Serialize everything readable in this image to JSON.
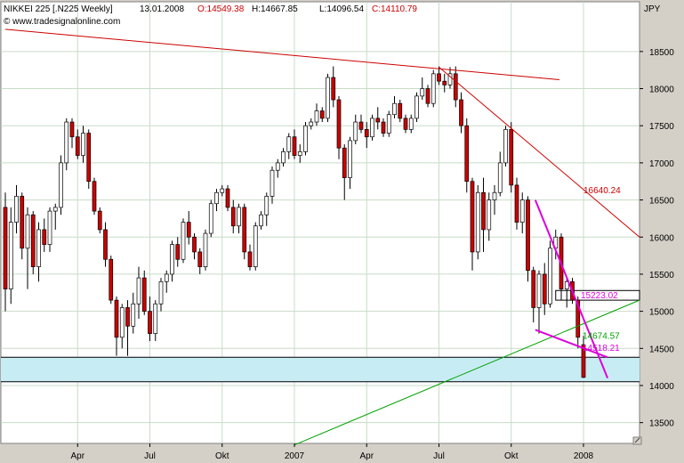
{
  "header": {
    "symbol": "NIKKEI 225 [.N225  Weekly]",
    "date": "13.01.2008",
    "open": "O:14549.38",
    "high": "H:14667.85",
    "low": "L:14096.54",
    "close": "C:14110.79",
    "watermark": "© www.tradesignalonline.com",
    "currency": "JPY"
  },
  "chart_data": {
    "type": "candlestick",
    "title": "NIKKEI 225 [.N225  Weekly]",
    "x_ticks": [
      "Apr",
      "Jul",
      "Okt",
      "2007",
      "Apr",
      "Jul",
      "Okt",
      "2008"
    ],
    "y_ticks": [
      13500,
      14000,
      14500,
      15000,
      15500,
      16000,
      16500,
      17000,
      17500,
      18000,
      18500
    ],
    "ylim": [
      13220,
      19170
    ],
    "grid": true,
    "candles": [
      [
        16400,
        16600,
        15000,
        15300
      ],
      [
        15300,
        16400,
        15100,
        16200
      ],
      [
        16200,
        16700,
        16050,
        16550
      ],
      [
        16550,
        16600,
        15700,
        15850
      ],
      [
        15850,
        16400,
        15300,
        16300
      ],
      [
        16300,
        16350,
        15500,
        15600
      ],
      [
        15600,
        16200,
        15400,
        16100
      ],
      [
        16100,
        16250,
        15800,
        15900
      ],
      [
        15900,
        16400,
        15800,
        16350
      ],
      [
        16350,
        16450,
        16100,
        16400
      ],
      [
        16400,
        17100,
        16300,
        17000
      ],
      [
        17000,
        17600,
        16900,
        17550
      ],
      [
        17550,
        17600,
        17200,
        17350
      ],
      [
        17350,
        17450,
        17050,
        17100
      ],
      [
        17100,
        17500,
        17000,
        17400
      ],
      [
        17400,
        17450,
        16650,
        16750
      ],
      [
        16750,
        16800,
        16300,
        16350
      ],
      [
        16350,
        16400,
        16050,
        16100
      ],
      [
        16100,
        16200,
        15600,
        15700
      ],
      [
        15700,
        15750,
        15100,
        15150
      ],
      [
        15150,
        15200,
        14400,
        14650
      ],
      [
        14650,
        15100,
        14500,
        15050
      ],
      [
        15050,
        15150,
        14400,
        14800
      ],
      [
        14800,
        15250,
        14700,
        15100
      ],
      [
        15100,
        15600,
        14900,
        15450
      ],
      [
        15450,
        15550,
        14950,
        15000
      ],
      [
        15000,
        15200,
        14600,
        14700
      ],
      [
        14700,
        15150,
        14600,
        15100
      ],
      [
        15100,
        15450,
        15000,
        15400
      ],
      [
        15400,
        15550,
        15250,
        15500
      ],
      [
        15500,
        15950,
        15400,
        15900
      ],
      [
        15900,
        16000,
        15600,
        15700
      ],
      [
        15700,
        16250,
        15650,
        16200
      ],
      [
        16200,
        16350,
        15900,
        16000
      ],
      [
        16000,
        16050,
        15700,
        15800
      ],
      [
        15800,
        15850,
        15500,
        15600
      ],
      [
        15600,
        16100,
        15550,
        16050
      ],
      [
        16050,
        16500,
        16000,
        16450
      ],
      [
        16450,
        16650,
        16350,
        16600
      ],
      [
        16600,
        16700,
        16550,
        16650
      ],
      [
        16650,
        16700,
        16350,
        16400
      ],
      [
        16400,
        16500,
        16050,
        16150
      ],
      [
        16150,
        16450,
        16050,
        16400
      ],
      [
        16400,
        16450,
        15700,
        15800
      ],
      [
        15800,
        15900,
        15550,
        15600
      ],
      [
        15600,
        16200,
        15550,
        16150
      ],
      [
        16150,
        16350,
        16100,
        16300
      ],
      [
        16300,
        16600,
        16150,
        16550
      ],
      [
        16550,
        16950,
        16450,
        16900
      ],
      [
        16900,
        17050,
        16800,
        17000
      ],
      [
        17000,
        17200,
        16950,
        17150
      ],
      [
        17150,
        17400,
        17050,
        17350
      ],
      [
        17350,
        17450,
        17050,
        17100
      ],
      [
        17100,
        17250,
        17000,
        17150
      ],
      [
        17150,
        17550,
        17100,
        17500
      ],
      [
        17500,
        17600,
        17450,
        17550
      ],
      [
        17550,
        17800,
        17500,
        17700
      ],
      [
        17700,
        17750,
        17550,
        17600
      ],
      [
        17600,
        18200,
        17550,
        18150
      ],
      [
        18150,
        18300,
        17750,
        17850
      ],
      [
        17850,
        17900,
        17050,
        17200
      ],
      [
        17200,
        17250,
        16500,
        16800
      ],
      [
        16800,
        17350,
        16650,
        17300
      ],
      [
        17300,
        17650,
        17250,
        17550
      ],
      [
        17550,
        17650,
        17400,
        17450
      ],
      [
        17450,
        17550,
        17200,
        17350
      ],
      [
        17350,
        17650,
        17300,
        17600
      ],
      [
        17600,
        17750,
        17450,
        17550
      ],
      [
        17550,
        17600,
        17350,
        17400
      ],
      [
        17400,
        17700,
        17350,
        17650
      ],
      [
        17650,
        17900,
        17600,
        17800
      ],
      [
        17800,
        17850,
        17550,
        17600
      ],
      [
        17600,
        17650,
        17400,
        17450
      ],
      [
        17450,
        17650,
        17400,
        17600
      ],
      [
        17600,
        17950,
        17550,
        17900
      ],
      [
        17900,
        18150,
        17850,
        18000
      ],
      [
        18000,
        18050,
        17750,
        17800
      ],
      [
        17800,
        18250,
        17750,
        18200
      ],
      [
        18200,
        18300,
        18050,
        18100
      ],
      [
        18100,
        18200,
        17950,
        18050
      ],
      [
        18050,
        18290,
        18000,
        18200
      ],
      [
        18200,
        18300,
        17750,
        17850
      ],
      [
        17850,
        17950,
        17400,
        17500
      ],
      [
        17500,
        17600,
        16600,
        16750
      ],
      [
        16750,
        16800,
        15550,
        15800
      ],
      [
        15800,
        16700,
        15700,
        16600
      ],
      [
        16600,
        16800,
        15800,
        16100
      ],
      [
        16100,
        16600,
        15950,
        16500
      ],
      [
        16500,
        16700,
        16300,
        16600
      ],
      [
        16600,
        17150,
        16550,
        17000
      ],
      [
        17000,
        17500,
        16950,
        17450
      ],
      [
        17450,
        17550,
        16600,
        16700
      ],
      [
        16700,
        16800,
        16100,
        16200
      ],
      [
        16200,
        16600,
        16050,
        16500
      ],
      [
        16500,
        16550,
        15400,
        15550
      ],
      [
        15550,
        15600,
        14850,
        15050
      ],
      [
        15050,
        15550,
        14700,
        15500
      ],
      [
        15500,
        15650,
        14950,
        15100
      ],
      [
        15100,
        15950,
        15050,
        15850
      ],
      [
        15850,
        16100,
        15700,
        16000
      ],
      [
        16000,
        16050,
        15150,
        15300
      ],
      [
        15300,
        15450,
        15050,
        15400
      ],
      [
        15400,
        15450,
        15100,
        15150
      ],
      [
        15150,
        15200,
        14500,
        14650
      ],
      [
        14550,
        14670,
        14100,
        14110
      ]
    ],
    "lines": [
      {
        "color": "#cc0000",
        "from": [
          "2006-01",
          18800
        ],
        "to": [
          "2007-12",
          18120
        ]
      },
      {
        "color": "#cc0000",
        "from": [
          "2007-07",
          18290
        ],
        "to": [
          "2008-04",
          16000
        ]
      },
      {
        "color": "#00a000",
        "from": [
          "2007-01",
          13200
        ],
        "to": [
          "2008-04",
          15150
        ]
      },
      {
        "color": "#dd00dd",
        "from": [
          "2007-11",
          16500
        ],
        "to": [
          "2008-02",
          14100
        ]
      },
      {
        "color": "#dd00dd",
        "from": [
          "2007-11",
          14750
        ],
        "to": [
          "2008-02",
          14380
        ]
      }
    ],
    "labels": [
      {
        "text": "16640.24",
        "color": "#cc0000"
      },
      {
        "text": "15223.02",
        "color": "#dd00dd"
      },
      {
        "text": "14674.57",
        "color": "#00a000"
      },
      {
        "text": "14518.21",
        "color": "#dd00dd"
      }
    ],
    "zone": {
      "from": 14050,
      "to": 14380,
      "color": "#c8ecf4"
    },
    "channel": {
      "from": 15150,
      "to": 15280
    }
  }
}
